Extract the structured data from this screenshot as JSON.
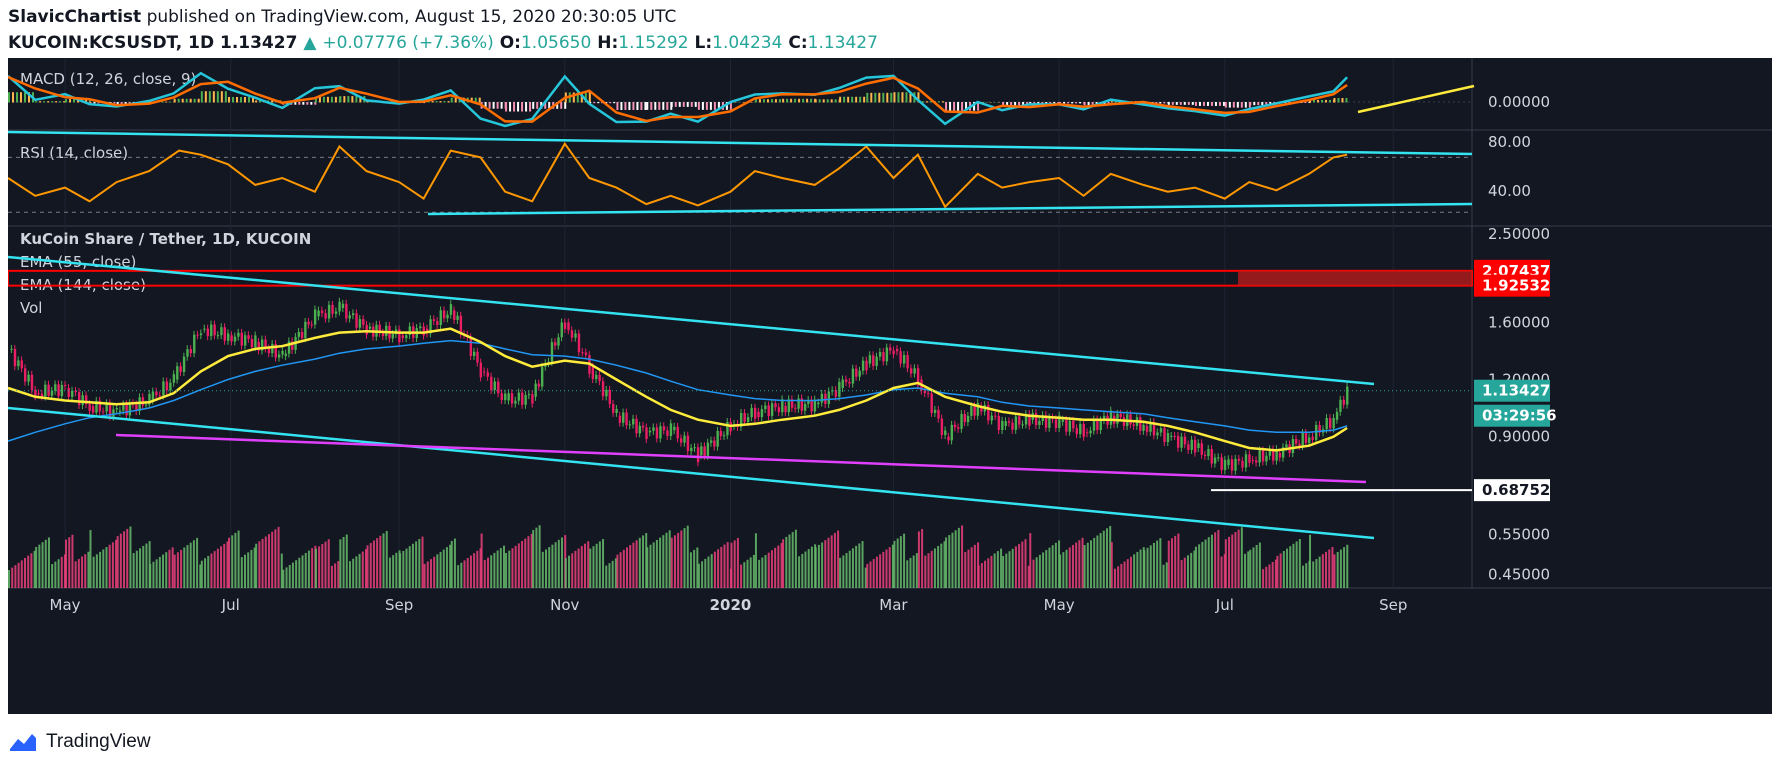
{
  "header": {
    "author": "SlavicChartist",
    "published_text": "published on TradingView.com, August 15, 2020 20:30:05 UTC",
    "symbol": "KUCOIN:KCSUSDT, 1D",
    "last": "1.13427",
    "change": "+0.07776 (+7.36%)",
    "open_label": "O:",
    "open": "1.05650",
    "high_label": "H:",
    "high": "1.15292",
    "low_label": "L:",
    "low": "1.04234",
    "close_label": "C:",
    "close": "1.13427"
  },
  "footer": {
    "brand": "TradingView"
  },
  "colors": {
    "background": "#131722",
    "up": "#26a69a",
    "candle_up": "#4caf50",
    "candle_down": "#e91e63",
    "ema55": "#ffeb3b",
    "ema144": "#2196f3",
    "trendline": "#33e3f0",
    "support": "#e040fb",
    "resistance_zone": "#ff0000",
    "rsi": "#ff9800",
    "macd": "#2196f3",
    "signal": "#ff6d00"
  },
  "chart_data": [
    {
      "type": "line",
      "name_panel": "macd",
      "label": "MACD (12, 26, close, 9)",
      "y_ticks": [
        "0.00000"
      ],
      "zero_level": 0
    },
    {
      "type": "line",
      "name_panel": "rsi",
      "label": "RSI (14, close)",
      "y_ticks": [
        "80.00",
        "40.00"
      ],
      "ylim": [
        20,
        90
      ],
      "levels": [
        70,
        30
      ],
      "series": [
        {
          "x_dates": [
            "2019-04-10",
            "2019-04-20",
            "2019-05-01",
            "2019-05-10",
            "2019-05-20",
            "2019-06-01",
            "2019-06-12",
            "2019-06-20",
            "2019-06-30",
            "2019-07-10",
            "2019-07-20",
            "2019-08-01",
            "2019-08-10",
            "2019-08-20",
            "2019-09-01",
            "2019-09-10",
            "2019-09-20",
            "2019-10-01",
            "2019-10-10",
            "2019-10-20",
            "2019-11-01",
            "2019-11-10",
            "2019-11-20",
            "2019-12-01",
            "2019-12-10",
            "2019-12-20",
            "2020-01-01",
            "2020-01-10",
            "2020-01-20",
            "2020-02-01",
            "2020-02-10",
            "2020-02-20",
            "2020-03-01",
            "2020-03-10",
            "2020-03-20",
            "2020-04-01",
            "2020-04-10",
            "2020-04-20",
            "2020-05-01",
            "2020-05-10",
            "2020-05-20",
            "2020-06-01",
            "2020-06-10",
            "2020-06-20",
            "2020-07-01",
            "2020-07-10",
            "2020-07-20",
            "2020-08-01",
            "2020-08-10",
            "2020-08-15"
          ],
          "values": [
            55,
            42,
            48,
            38,
            52,
            60,
            75,
            72,
            65,
            50,
            55,
            45,
            78,
            60,
            52,
            40,
            75,
            70,
            45,
            38,
            80,
            55,
            48,
            36,
            42,
            35,
            45,
            60,
            55,
            50,
            62,
            78,
            55,
            72,
            34,
            58,
            48,
            52,
            55,
            42,
            58,
            50,
            45,
            48,
            40,
            52,
            46,
            58,
            70,
            72
          ]
        }
      ]
    },
    {
      "type": "candlestick",
      "name_panel": "price",
      "label": "KuCoin Share / Tether, 1D, KUCOIN",
      "indicators": [
        "EMA (55, close)",
        "EMA (144, close)",
        "Vol"
      ],
      "x_ticks": [
        "May",
        "Jul",
        "Sep",
        "Nov",
        "2020",
        "Mar",
        "May",
        "Jul",
        "Sep"
      ],
      "y_ticks": [
        "2.50000",
        "1.60000",
        "1.20000",
        "0.90000",
        "0.55000",
        "0.45000"
      ],
      "y_scale": "log",
      "ylim": [
        0.42,
        2.6
      ],
      "price_labels": [
        {
          "value": "2.07437",
          "kind": "resistance"
        },
        {
          "value": "1.92532",
          "kind": "resistance"
        },
        {
          "value": "1.13427",
          "kind": "last"
        },
        {
          "value": "03:29:56",
          "kind": "countdown"
        },
        {
          "value": "0.68752",
          "kind": "horizontal"
        }
      ],
      "resistance_zone": [
        1.92532,
        2.07437
      ],
      "close_series": {
        "x_dates": [
          "2019-04-10",
          "2019-04-20",
          "2019-05-01",
          "2019-05-10",
          "2019-05-20",
          "2019-06-01",
          "2019-06-10",
          "2019-06-20",
          "2019-06-30",
          "2019-07-10",
          "2019-07-20",
          "2019-08-01",
          "2019-08-10",
          "2019-08-20",
          "2019-09-01",
          "2019-09-10",
          "2019-09-20",
          "2019-10-01",
          "2019-10-10",
          "2019-10-20",
          "2019-11-01",
          "2019-11-10",
          "2019-11-20",
          "2019-12-01",
          "2019-12-10",
          "2019-12-20",
          "2020-01-01",
          "2020-01-10",
          "2020-01-20",
          "2020-02-01",
          "2020-02-10",
          "2020-02-20",
          "2020-03-01",
          "2020-03-10",
          "2020-03-20",
          "2020-04-01",
          "2020-04-10",
          "2020-04-20",
          "2020-05-01",
          "2020-05-10",
          "2020-05-20",
          "2020-06-01",
          "2020-06-10",
          "2020-06-20",
          "2020-07-01",
          "2020-07-10",
          "2020-07-20",
          "2020-08-01",
          "2020-08-10",
          "2020-08-15"
        ],
        "values": [
          1.4,
          1.12,
          1.15,
          1.05,
          1.02,
          1.08,
          1.2,
          1.55,
          1.5,
          1.45,
          1.35,
          1.65,
          1.72,
          1.55,
          1.5,
          1.55,
          1.7,
          1.25,
          1.08,
          1.1,
          1.6,
          1.28,
          1.0,
          0.92,
          0.93,
          0.82,
          0.95,
          1.02,
          1.05,
          1.06,
          1.15,
          1.3,
          1.4,
          1.2,
          0.9,
          1.05,
          0.95,
          0.98,
          0.97,
          0.92,
          1.0,
          0.95,
          0.9,
          0.85,
          0.78,
          0.8,
          0.83,
          0.9,
          0.98,
          1.13427
        ]
      },
      "ema55": [
        1.15,
        1.1,
        1.08,
        1.07,
        1.06,
        1.07,
        1.12,
        1.25,
        1.35,
        1.4,
        1.42,
        1.48,
        1.52,
        1.53,
        1.52,
        1.52,
        1.55,
        1.45,
        1.35,
        1.28,
        1.32,
        1.3,
        1.2,
        1.1,
        1.03,
        0.98,
        0.95,
        0.96,
        0.98,
        1.0,
        1.03,
        1.08,
        1.15,
        1.18,
        1.1,
        1.05,
        1.02,
        1.0,
        0.99,
        0.98,
        0.98,
        0.97,
        0.95,
        0.92,
        0.88,
        0.85,
        0.84,
        0.86,
        0.9,
        0.94
      ],
      "ema144": [
        0.88,
        0.92,
        0.96,
        0.99,
        1.01,
        1.04,
        1.08,
        1.14,
        1.2,
        1.25,
        1.29,
        1.33,
        1.37,
        1.4,
        1.42,
        1.44,
        1.46,
        1.44,
        1.4,
        1.36,
        1.35,
        1.33,
        1.29,
        1.24,
        1.19,
        1.14,
        1.11,
        1.09,
        1.08,
        1.08,
        1.09,
        1.11,
        1.14,
        1.15,
        1.12,
        1.1,
        1.07,
        1.05,
        1.04,
        1.03,
        1.02,
        1.01,
        0.99,
        0.97,
        0.95,
        0.93,
        0.92,
        0.92,
        0.93,
        0.95
      ]
    }
  ]
}
